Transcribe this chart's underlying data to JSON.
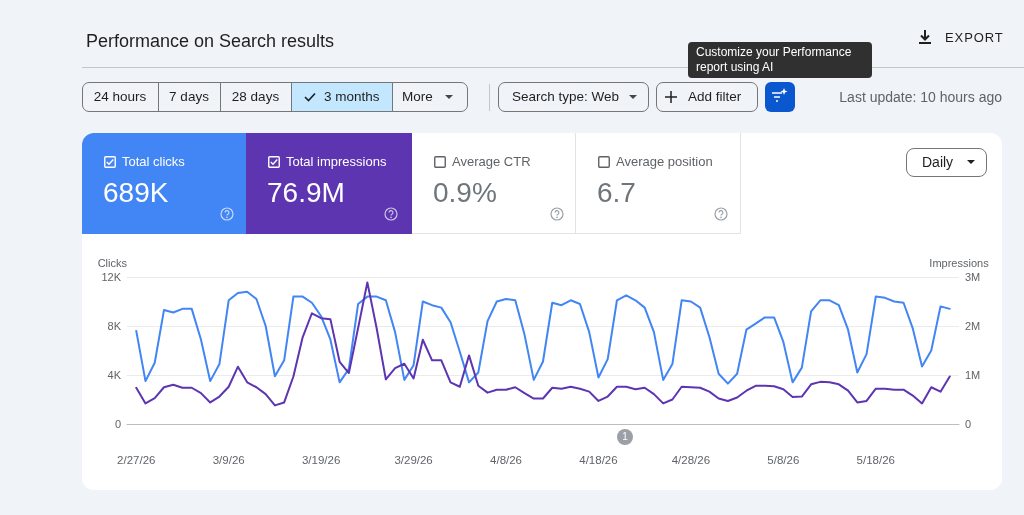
{
  "chart_data": {
    "type": "line",
    "title": "Performance on Search results",
    "ylabel": "Clicks",
    "y2label": "Impressions",
    "annotations": [
      "EXPORT",
      "24 hours",
      "7 days",
      "28 days",
      "3 months",
      "More",
      "Search type: Web",
      "Add filter",
      "Customize your Performance report using AI",
      "Last update: 10 hours ago",
      "Total clicks",
      "689K",
      "Total impressions",
      "76.9M",
      "Average CTR",
      "0.9%",
      "Average position",
      "6.7",
      "Daily",
      "1"
    ],
    "x": [
      "--02-27",
      "--02-28",
      "--03-01",
      "--03-02",
      "--03-03",
      "--03-04",
      "--03-05",
      "--03-06",
      "--03-07",
      "--03-08",
      "--03-09",
      "--03-10",
      "--03-11",
      "--03-12",
      "--03-13",
      "--03-14",
      "--03-15",
      "--03-16",
      "--03-17",
      "--03-18",
      "--03-19",
      "--03-20",
      "--03-21",
      "--03-22",
      "--03-23",
      "--03-24",
      "--03-25",
      "--03-26",
      "--03-27",
      "--03-28",
      "--03-29",
      "--03-30",
      "--03-31",
      "--04-01",
      "--04-02",
      "--04-03",
      "--04-04",
      "--04-05",
      "--04-06",
      "--04-07",
      "--04-08",
      "--04-09",
      "--04-10",
      "--04-11",
      "--04-12",
      "--04-13",
      "--04-14",
      "--04-15",
      "--04-16",
      "--04-17",
      "--04-18",
      "--04-19",
      "--04-20",
      "--04-21",
      "--04-22",
      "--04-23",
      "--04-24",
      "--04-25",
      "--04-26",
      "--04-27",
      "--04-28",
      "--04-29",
      "--04-30",
      "--05-01",
      "--05-02",
      "--05-03",
      "--05-04",
      "--05-05",
      "--05-06",
      "--05-07",
      "--05-08",
      "--05-09",
      "--05-10",
      "--05-11",
      "--05-12",
      "--05-13",
      "--05-14",
      "--05-15",
      "--05-16",
      "--05-17",
      "--05-18",
      "--05-19",
      "--05-20",
      "--05-21",
      "--05-22",
      "--05-23",
      "--05-24",
      "--05-25",
      "--05-26"
    ],
    "series": [
      {
        "color": "#4285f4",
        "values": [
          7600,
          3500,
          5000,
          9300,
          9100,
          9400,
          9400,
          6900,
          3500,
          4900,
          10100,
          10700,
          10800,
          10200,
          8000,
          3900,
          5200,
          10400,
          10400,
          9900,
          8800,
          6900,
          3400,
          4500,
          9800,
          10400,
          10400,
          10100,
          7500,
          3600,
          4800,
          10000,
          9700,
          9500,
          8300,
          5900,
          3400,
          4200,
          8400,
          10000,
          10200,
          10100,
          7300,
          3600,
          5100,
          9900,
          9700,
          10100,
          9800,
          7500,
          3800,
          5300,
          10100,
          10500,
          10100,
          9500,
          7500,
          3600,
          4900,
          10100,
          10000,
          9500,
          7100,
          4100,
          3300,
          4100,
          7700,
          8200,
          8700,
          8700,
          6700,
          3400,
          4600,
          9200,
          10100,
          10100,
          9700,
          7700,
          4200,
          5700,
          10400,
          10300,
          10000,
          9900,
          7800,
          4700,
          6000,
          9600,
          9400
        ]
      },
      {
        "color": "#5e35b1",
        "axis": "y2",
        "values": [
          740000,
          420000,
          530000,
          750000,
          800000,
          740000,
          740000,
          630000,
          440000,
          560000,
          760000,
          1170000,
          850000,
          750000,
          610000,
          380000,
          440000,
          970000,
          1770000,
          2260000,
          2160000,
          2140000,
          1270000,
          1040000,
          1960000,
          2890000,
          1960000,
          910000,
          1140000,
          1230000,
          930000,
          1720000,
          1300000,
          1300000,
          850000,
          760000,
          1400000,
          780000,
          640000,
          700000,
          700000,
          750000,
          630000,
          520000,
          520000,
          740000,
          720000,
          760000,
          720000,
          660000,
          470000,
          560000,
          760000,
          760000,
          710000,
          740000,
          610000,
          420000,
          500000,
          760000,
          750000,
          740000,
          660000,
          520000,
          470000,
          540000,
          680000,
          780000,
          780000,
          770000,
          710000,
          550000,
          560000,
          810000,
          860000,
          850000,
          810000,
          680000,
          440000,
          470000,
          720000,
          720000,
          700000,
          700000,
          580000,
          420000,
          750000,
          660000,
          970000
        ]
      }
    ],
    "xlim": [
      "--02-26",
      "--05-27"
    ],
    "xticks": [
      {
        "value": "--02-27",
        "label": "2/27/26"
      },
      {
        "value": "--03-09",
        "label": "3/9/26"
      },
      {
        "value": "--03-19",
        "label": "3/19/26"
      },
      {
        "value": "--03-29",
        "label": "3/29/26"
      },
      {
        "value": "--04-08",
        "label": "4/8/26"
      },
      {
        "value": "--04-18",
        "label": "4/18/26"
      },
      {
        "value": "--04-28",
        "label": "4/28/26"
      },
      {
        "value": "--05-08",
        "label": "5/8/26"
      },
      {
        "value": "--05-18",
        "label": "5/18/26"
      }
    ],
    "ylim": [
      0,
      12000
    ],
    "yticks": [
      0,
      {
        "value": 4000,
        "label": "4K"
      },
      {
        "value": 8000,
        "label": "8K"
      },
      {
        "value": 12000,
        "label": "12K"
      }
    ],
    "y2lim": [
      0,
      3000000
    ],
    "y2ticks": [
      0,
      {
        "value": 1000000,
        "label": "1M"
      },
      {
        "value": 2000000,
        "label": "2M"
      },
      {
        "value": 3000000,
        "label": "3M"
      }
    ],
    "grid": "y"
  }
}
